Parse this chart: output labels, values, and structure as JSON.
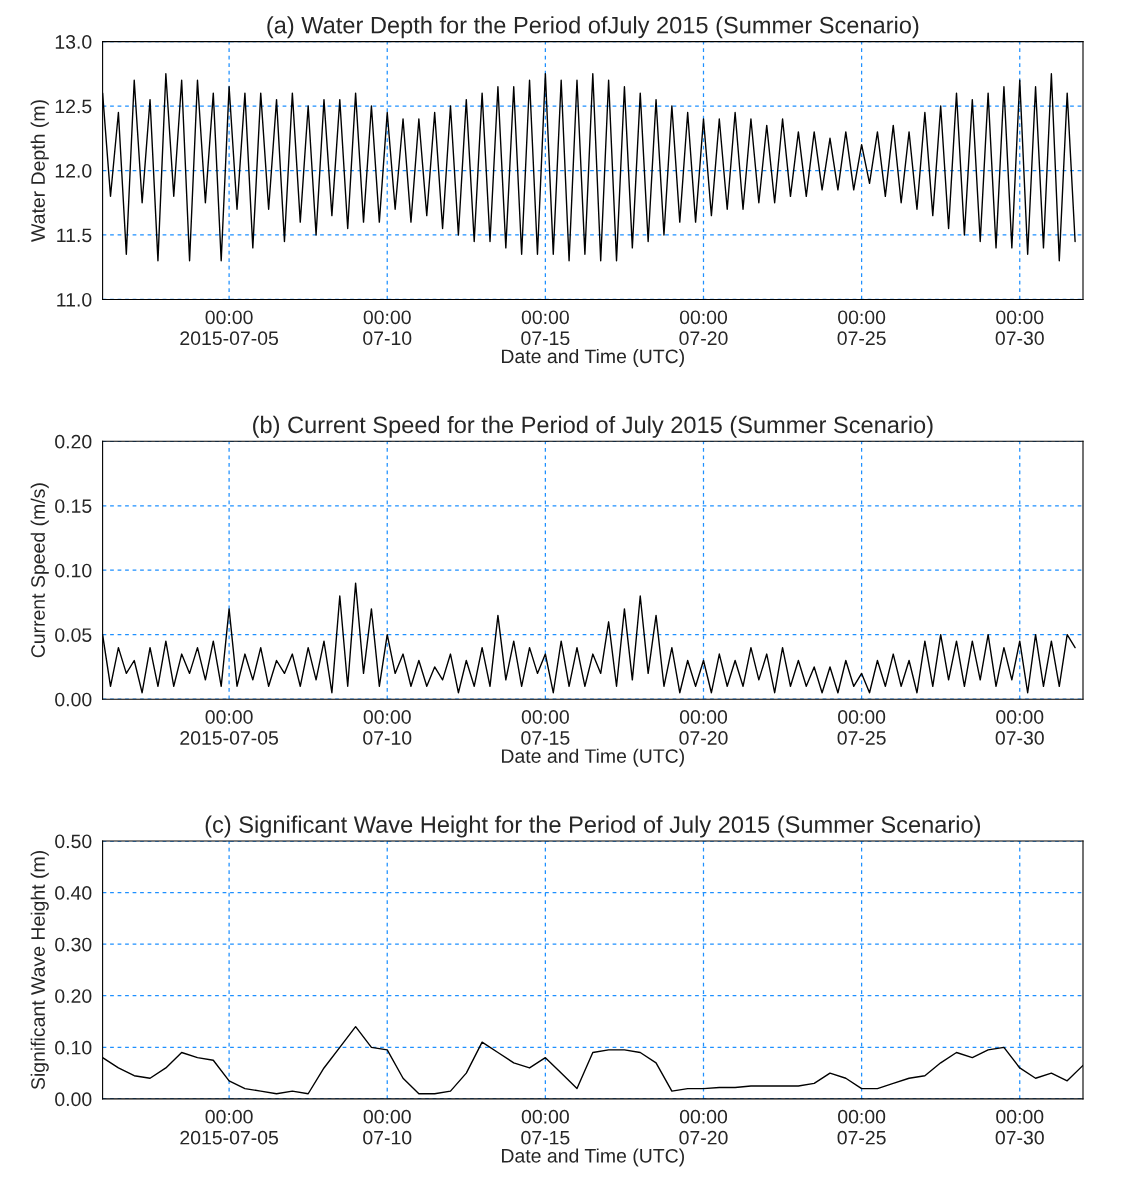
{
  "chart_data": [
    {
      "type": "line",
      "title": "(a) Water Depth for the Period ofJuly 2015 (Summer Scenario)",
      "xlabel": "Date and Time (UTC)",
      "ylabel": "Water Depth (m)",
      "grid": true,
      "marker": "none",
      "line_style": "solid",
      "xlim": [
        "2015-07-01T00:00",
        "2015-08-01T00:00"
      ],
      "ylim": [
        11.0,
        13.0
      ],
      "yticks": [
        {
          "value": 11.0,
          "label": "11.0"
        },
        {
          "value": 11.5,
          "label": "11.5"
        },
        {
          "value": 12.0,
          "label": "12.0"
        },
        {
          "value": 12.5,
          "label": "12.5"
        },
        {
          "value": 13.0,
          "label": "13.0"
        }
      ],
      "xticks": [
        {
          "value": "2015-07-05",
          "label": "00:00\n2015-07-05"
        },
        {
          "value": "2015-07-10",
          "label": "00:00\n07-10"
        },
        {
          "value": "2015-07-15",
          "label": "00:00\n07-15"
        },
        {
          "value": "2015-07-20",
          "label": "00:00\n07-20"
        },
        {
          "value": "2015-07-25",
          "label": "00:00\n07-25"
        },
        {
          "value": "2015-07-30",
          "label": "00:00\n07-30"
        }
      ],
      "x": [
        "2015-07-01T00:00",
        "2015-07-01T06:00",
        "2015-07-01T12:00",
        "2015-07-01T18:00",
        "2015-07-02T00:00",
        "2015-07-02T06:00",
        "2015-07-02T12:00",
        "2015-07-02T18:00",
        "2015-07-03T00:00",
        "2015-07-03T06:00",
        "2015-07-03T12:00",
        "2015-07-03T18:00",
        "2015-07-04T00:00",
        "2015-07-04T06:00",
        "2015-07-04T12:00",
        "2015-07-04T18:00",
        "2015-07-05T00:00",
        "2015-07-05T06:00",
        "2015-07-05T12:00",
        "2015-07-05T18:00",
        "2015-07-06T00:00",
        "2015-07-06T06:00",
        "2015-07-06T12:00",
        "2015-07-06T18:00",
        "2015-07-07T00:00",
        "2015-07-07T06:00",
        "2015-07-07T12:00",
        "2015-07-07T18:00",
        "2015-07-08T00:00",
        "2015-07-08T06:00",
        "2015-07-08T12:00",
        "2015-07-08T18:00",
        "2015-07-09T00:00",
        "2015-07-09T06:00",
        "2015-07-09T12:00",
        "2015-07-09T18:00",
        "2015-07-10T00:00",
        "2015-07-10T06:00",
        "2015-07-10T12:00",
        "2015-07-10T18:00",
        "2015-07-11T00:00",
        "2015-07-11T06:00",
        "2015-07-11T12:00",
        "2015-07-11T18:00",
        "2015-07-12T00:00",
        "2015-07-12T06:00",
        "2015-07-12T12:00",
        "2015-07-12T18:00",
        "2015-07-13T00:00",
        "2015-07-13T06:00",
        "2015-07-13T12:00",
        "2015-07-13T18:00",
        "2015-07-14T00:00",
        "2015-07-14T06:00",
        "2015-07-14T12:00",
        "2015-07-14T18:00",
        "2015-07-15T00:00",
        "2015-07-15T06:00",
        "2015-07-15T12:00",
        "2015-07-15T18:00",
        "2015-07-16T00:00",
        "2015-07-16T06:00",
        "2015-07-16T12:00",
        "2015-07-16T18:00",
        "2015-07-17T00:00",
        "2015-07-17T06:00",
        "2015-07-17T12:00",
        "2015-07-17T18:00",
        "2015-07-18T00:00",
        "2015-07-18T06:00",
        "2015-07-18T12:00",
        "2015-07-18T18:00",
        "2015-07-19T00:00",
        "2015-07-19T06:00",
        "2015-07-19T12:00",
        "2015-07-19T18:00",
        "2015-07-20T00:00",
        "2015-07-20T06:00",
        "2015-07-20T12:00",
        "2015-07-20T18:00",
        "2015-07-21T00:00",
        "2015-07-21T06:00",
        "2015-07-21T12:00",
        "2015-07-21T18:00",
        "2015-07-22T00:00",
        "2015-07-22T06:00",
        "2015-07-22T12:00",
        "2015-07-22T18:00",
        "2015-07-23T00:00",
        "2015-07-23T06:00",
        "2015-07-23T12:00",
        "2015-07-23T18:00",
        "2015-07-24T00:00",
        "2015-07-24T06:00",
        "2015-07-24T12:00",
        "2015-07-24T18:00",
        "2015-07-25T00:00",
        "2015-07-25T06:00",
        "2015-07-25T12:00",
        "2015-07-25T18:00",
        "2015-07-26T00:00",
        "2015-07-26T06:00",
        "2015-07-26T12:00",
        "2015-07-26T18:00",
        "2015-07-27T00:00",
        "2015-07-27T06:00",
        "2015-07-27T12:00",
        "2015-07-27T18:00",
        "2015-07-28T00:00",
        "2015-07-28T06:00",
        "2015-07-28T12:00",
        "2015-07-28T18:00",
        "2015-07-29T00:00",
        "2015-07-29T06:00",
        "2015-07-29T12:00",
        "2015-07-29T18:00",
        "2015-07-30T00:00",
        "2015-07-30T06:00",
        "2015-07-30T12:00",
        "2015-07-30T18:00",
        "2015-07-31T00:00",
        "2015-07-31T06:00",
        "2015-07-31T12:00",
        "2015-07-31T18:00"
      ],
      "series": [
        {
          "color": "#000000",
          "values": [
            12.6,
            11.8,
            12.45,
            11.35,
            12.7,
            11.75,
            12.55,
            11.3,
            12.75,
            11.8,
            12.7,
            11.3,
            12.7,
            11.75,
            12.6,
            11.3,
            12.65,
            11.7,
            12.6,
            11.4,
            12.6,
            11.7,
            12.55,
            11.45,
            12.6,
            11.6,
            12.5,
            11.5,
            12.55,
            11.65,
            12.55,
            11.55,
            12.6,
            11.6,
            12.5,
            11.6,
            12.45,
            11.7,
            12.4,
            11.6,
            12.4,
            11.65,
            12.45,
            11.55,
            12.5,
            11.5,
            12.55,
            11.45,
            12.6,
            11.45,
            12.65,
            11.4,
            12.65,
            11.35,
            12.7,
            11.35,
            12.75,
            11.35,
            12.7,
            11.3,
            12.7,
            11.35,
            12.75,
            11.3,
            12.7,
            11.3,
            12.65,
            11.4,
            12.6,
            11.45,
            12.55,
            11.5,
            12.5,
            11.6,
            12.45,
            11.6,
            12.4,
            11.65,
            12.4,
            11.7,
            12.45,
            11.7,
            12.4,
            11.75,
            12.35,
            11.75,
            12.4,
            11.8,
            12.3,
            11.8,
            12.3,
            11.85,
            12.25,
            11.85,
            12.3,
            11.85,
            12.2,
            11.9,
            12.3,
            11.8,
            12.35,
            11.75,
            12.3,
            11.7,
            12.45,
            11.65,
            12.5,
            11.55,
            12.6,
            11.5,
            12.55,
            11.45,
            12.6,
            11.4,
            12.65,
            11.4,
            12.7,
            11.35,
            12.65,
            11.4,
            12.75,
            11.3,
            12.6,
            11.45
          ]
        }
      ]
    },
    {
      "type": "line",
      "title": "(b) Current Speed for the Period of July 2015 (Summer Scenario)",
      "xlabel": "Date and Time (UTC)",
      "ylabel": "Current Speed (m/s)",
      "grid": true,
      "marker": "none",
      "line_style": "solid",
      "xlim": [
        "2015-07-01T00:00",
        "2015-08-01T00:00"
      ],
      "ylim": [
        0.0,
        0.2
      ],
      "yticks": [
        {
          "value": 0.0,
          "label": "0.00"
        },
        {
          "value": 0.05,
          "label": "0.05"
        },
        {
          "value": 0.1,
          "label": "0.10"
        },
        {
          "value": 0.15,
          "label": "0.15"
        },
        {
          "value": 0.2,
          "label": "0.20"
        }
      ],
      "xticks": [
        {
          "value": "2015-07-05",
          "label": "00:00\n2015-07-05"
        },
        {
          "value": "2015-07-10",
          "label": "00:00\n07-10"
        },
        {
          "value": "2015-07-15",
          "label": "00:00\n07-15"
        },
        {
          "value": "2015-07-20",
          "label": "00:00\n07-20"
        },
        {
          "value": "2015-07-25",
          "label": "00:00\n07-25"
        },
        {
          "value": "2015-07-30",
          "label": "00:00\n07-30"
        }
      ],
      "x": [
        "2015-07-01T00:00",
        "2015-07-01T06:00",
        "2015-07-01T12:00",
        "2015-07-01T18:00",
        "2015-07-02T00:00",
        "2015-07-02T06:00",
        "2015-07-02T12:00",
        "2015-07-02T18:00",
        "2015-07-03T00:00",
        "2015-07-03T06:00",
        "2015-07-03T12:00",
        "2015-07-03T18:00",
        "2015-07-04T00:00",
        "2015-07-04T06:00",
        "2015-07-04T12:00",
        "2015-07-04T18:00",
        "2015-07-05T00:00",
        "2015-07-05T06:00",
        "2015-07-05T12:00",
        "2015-07-05T18:00",
        "2015-07-06T00:00",
        "2015-07-06T06:00",
        "2015-07-06T12:00",
        "2015-07-06T18:00",
        "2015-07-07T00:00",
        "2015-07-07T06:00",
        "2015-07-07T12:00",
        "2015-07-07T18:00",
        "2015-07-08T00:00",
        "2015-07-08T06:00",
        "2015-07-08T12:00",
        "2015-07-08T18:00",
        "2015-07-09T00:00",
        "2015-07-09T06:00",
        "2015-07-09T12:00",
        "2015-07-09T18:00",
        "2015-07-10T00:00",
        "2015-07-10T06:00",
        "2015-07-10T12:00",
        "2015-07-10T18:00",
        "2015-07-11T00:00",
        "2015-07-11T06:00",
        "2015-07-11T12:00",
        "2015-07-11T18:00",
        "2015-07-12T00:00",
        "2015-07-12T06:00",
        "2015-07-12T12:00",
        "2015-07-12T18:00",
        "2015-07-13T00:00",
        "2015-07-13T06:00",
        "2015-07-13T12:00",
        "2015-07-13T18:00",
        "2015-07-14T00:00",
        "2015-07-14T06:00",
        "2015-07-14T12:00",
        "2015-07-14T18:00",
        "2015-07-15T00:00",
        "2015-07-15T06:00",
        "2015-07-15T12:00",
        "2015-07-15T18:00",
        "2015-07-16T00:00",
        "2015-07-16T06:00",
        "2015-07-16T12:00",
        "2015-07-16T18:00",
        "2015-07-17T00:00",
        "2015-07-17T06:00",
        "2015-07-17T12:00",
        "2015-07-17T18:00",
        "2015-07-18T00:00",
        "2015-07-18T06:00",
        "2015-07-18T12:00",
        "2015-07-18T18:00",
        "2015-07-19T00:00",
        "2015-07-19T06:00",
        "2015-07-19T12:00",
        "2015-07-19T18:00",
        "2015-07-20T00:00",
        "2015-07-20T06:00",
        "2015-07-20T12:00",
        "2015-07-20T18:00",
        "2015-07-21T00:00",
        "2015-07-21T06:00",
        "2015-07-21T12:00",
        "2015-07-21T18:00",
        "2015-07-22T00:00",
        "2015-07-22T06:00",
        "2015-07-22T12:00",
        "2015-07-22T18:00",
        "2015-07-23T00:00",
        "2015-07-23T06:00",
        "2015-07-23T12:00",
        "2015-07-23T18:00",
        "2015-07-24T00:00",
        "2015-07-24T06:00",
        "2015-07-24T12:00",
        "2015-07-24T18:00",
        "2015-07-25T00:00",
        "2015-07-25T06:00",
        "2015-07-25T12:00",
        "2015-07-25T18:00",
        "2015-07-26T00:00",
        "2015-07-26T06:00",
        "2015-07-26T12:00",
        "2015-07-26T18:00",
        "2015-07-27T00:00",
        "2015-07-27T06:00",
        "2015-07-27T12:00",
        "2015-07-27T18:00",
        "2015-07-28T00:00",
        "2015-07-28T06:00",
        "2015-07-28T12:00",
        "2015-07-28T18:00",
        "2015-07-29T00:00",
        "2015-07-29T06:00",
        "2015-07-29T12:00",
        "2015-07-29T18:00",
        "2015-07-30T00:00",
        "2015-07-30T06:00",
        "2015-07-30T12:00",
        "2015-07-30T18:00",
        "2015-07-31T00:00",
        "2015-07-31T06:00",
        "2015-07-31T12:00",
        "2015-07-31T18:00"
      ],
      "series": [
        {
          "color": "#000000",
          "values": [
            0.05,
            0.01,
            0.04,
            0.02,
            0.03,
            0.005,
            0.04,
            0.01,
            0.045,
            0.01,
            0.035,
            0.02,
            0.04,
            0.015,
            0.045,
            0.01,
            0.07,
            0.01,
            0.035,
            0.015,
            0.04,
            0.01,
            0.03,
            0.02,
            0.035,
            0.01,
            0.04,
            0.015,
            0.045,
            0.005,
            0.08,
            0.01,
            0.09,
            0.02,
            0.07,
            0.01,
            0.05,
            0.02,
            0.035,
            0.01,
            0.03,
            0.01,
            0.025,
            0.015,
            0.035,
            0.005,
            0.03,
            0.01,
            0.04,
            0.01,
            0.065,
            0.015,
            0.045,
            0.01,
            0.04,
            0.02,
            0.035,
            0.005,
            0.045,
            0.01,
            0.04,
            0.01,
            0.035,
            0.02,
            0.06,
            0.01,
            0.07,
            0.015,
            0.08,
            0.02,
            0.065,
            0.01,
            0.04,
            0.005,
            0.03,
            0.01,
            0.03,
            0.005,
            0.035,
            0.01,
            0.03,
            0.01,
            0.04,
            0.015,
            0.035,
            0.005,
            0.04,
            0.01,
            0.03,
            0.01,
            0.025,
            0.005,
            0.025,
            0.005,
            0.03,
            0.01,
            0.02,
            0.005,
            0.03,
            0.01,
            0.035,
            0.01,
            0.03,
            0.005,
            0.045,
            0.01,
            0.05,
            0.015,
            0.045,
            0.01,
            0.045,
            0.015,
            0.05,
            0.01,
            0.04,
            0.015,
            0.045,
            0.005,
            0.05,
            0.01,
            0.045,
            0.01,
            0.05,
            0.04
          ]
        }
      ]
    },
    {
      "type": "line",
      "title": "(c) Significant Wave Height for the Period of July 2015 (Summer Scenario)",
      "xlabel": "Date and Time (UTC)",
      "ylabel": "Significant Wave Height (m)",
      "grid": true,
      "marker": "none",
      "line_style": "solid",
      "xlim": [
        "2015-07-01T00:00",
        "2015-08-01T00:00"
      ],
      "ylim": [
        0.0,
        0.5
      ],
      "yticks": [
        {
          "value": 0.0,
          "label": "0.00"
        },
        {
          "value": 0.1,
          "label": "0.10"
        },
        {
          "value": 0.2,
          "label": "0.20"
        },
        {
          "value": 0.3,
          "label": "0.30"
        },
        {
          "value": 0.4,
          "label": "0.40"
        },
        {
          "value": 0.5,
          "label": "0.50"
        }
      ],
      "xticks": [
        {
          "value": "2015-07-05",
          "label": "00:00\n2015-07-05"
        },
        {
          "value": "2015-07-10",
          "label": "00:00\n07-10"
        },
        {
          "value": "2015-07-15",
          "label": "00:00\n07-15"
        },
        {
          "value": "2015-07-20",
          "label": "00:00\n07-20"
        },
        {
          "value": "2015-07-25",
          "label": "00:00\n07-25"
        },
        {
          "value": "2015-07-30",
          "label": "00:00\n07-30"
        }
      ],
      "x": [
        "2015-07-01T00:00",
        "2015-07-01T12:00",
        "2015-07-02T00:00",
        "2015-07-02T12:00",
        "2015-07-03T00:00",
        "2015-07-03T12:00",
        "2015-07-04T00:00",
        "2015-07-04T12:00",
        "2015-07-05T00:00",
        "2015-07-05T12:00",
        "2015-07-06T00:00",
        "2015-07-06T12:00",
        "2015-07-07T00:00",
        "2015-07-07T12:00",
        "2015-07-08T00:00",
        "2015-07-08T12:00",
        "2015-07-09T00:00",
        "2015-07-09T12:00",
        "2015-07-10T00:00",
        "2015-07-10T12:00",
        "2015-07-11T00:00",
        "2015-07-11T12:00",
        "2015-07-12T00:00",
        "2015-07-12T12:00",
        "2015-07-13T00:00",
        "2015-07-13T12:00",
        "2015-07-14T00:00",
        "2015-07-14T12:00",
        "2015-07-15T00:00",
        "2015-07-15T12:00",
        "2015-07-16T00:00",
        "2015-07-16T12:00",
        "2015-07-17T00:00",
        "2015-07-17T12:00",
        "2015-07-18T00:00",
        "2015-07-18T12:00",
        "2015-07-19T00:00",
        "2015-07-19T12:00",
        "2015-07-20T00:00",
        "2015-07-20T12:00",
        "2015-07-21T00:00",
        "2015-07-21T12:00",
        "2015-07-22T00:00",
        "2015-07-22T12:00",
        "2015-07-23T00:00",
        "2015-07-23T12:00",
        "2015-07-24T00:00",
        "2015-07-24T12:00",
        "2015-07-25T00:00",
        "2015-07-25T12:00",
        "2015-07-26T00:00",
        "2015-07-26T12:00",
        "2015-07-27T00:00",
        "2015-07-27T12:00",
        "2015-07-28T00:00",
        "2015-07-28T12:00",
        "2015-07-29T00:00",
        "2015-07-29T12:00",
        "2015-07-30T00:00",
        "2015-07-30T12:00",
        "2015-07-31T00:00",
        "2015-07-31T12:00",
        "2015-08-01T00:00"
      ],
      "series": [
        {
          "color": "#000000",
          "values": [
            0.08,
            0.06,
            0.045,
            0.04,
            0.06,
            0.09,
            0.08,
            0.075,
            0.035,
            0.02,
            0.015,
            0.01,
            0.015,
            0.01,
            0.06,
            0.1,
            0.14,
            0.1,
            0.095,
            0.04,
            0.01,
            0.01,
            0.015,
            0.05,
            0.11,
            0.09,
            0.07,
            0.06,
            0.08,
            0.05,
            0.02,
            0.09,
            0.095,
            0.095,
            0.09,
            0.07,
            0.015,
            0.02,
            0.02,
            0.022,
            0.022,
            0.025,
            0.025,
            0.025,
            0.025,
            0.03,
            0.05,
            0.04,
            0.02,
            0.02,
            0.03,
            0.04,
            0.045,
            0.07,
            0.09,
            0.08,
            0.095,
            0.1,
            0.06,
            0.04,
            0.05,
            0.035,
            0.065
          ]
        }
      ]
    }
  ]
}
